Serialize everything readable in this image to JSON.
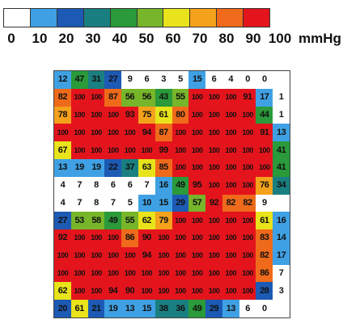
{
  "chart_data": {
    "type": "heatmap",
    "unit": "mmHg",
    "scale": {
      "ticks": [
        "0",
        "10",
        "20",
        "30",
        "40",
        "50",
        "60",
        "70",
        "80",
        "90",
        "100"
      ],
      "colors": [
        "#ffffff",
        "#3fa1e4",
        "#1c5ab4",
        "#1a7f80",
        "#2a9a3a",
        "#77b52a",
        "#e8e31a",
        "#f4a11c",
        "#ef6a1a",
        "#e4141c"
      ]
    },
    "values": [
      [
        12,
        47,
        31,
        27,
        9,
        6,
        3,
        5,
        15,
        6,
        4,
        0,
        0,
        0
      ],
      [
        82,
        100,
        100,
        87,
        56,
        56,
        43,
        55,
        100,
        100,
        100,
        91,
        17,
        1
      ],
      [
        78,
        100,
        100,
        100,
        93,
        75,
        61,
        80,
        100,
        100,
        100,
        100,
        44,
        1
      ],
      [
        100,
        100,
        100,
        100,
        100,
        94,
        87,
        100,
        100,
        100,
        100,
        100,
        91,
        13
      ],
      [
        67,
        100,
        100,
        100,
        100,
        100,
        99,
        100,
        100,
        100,
        100,
        100,
        100,
        41
      ],
      [
        13,
        19,
        19,
        22,
        37,
        63,
        85,
        100,
        100,
        100,
        100,
        100,
        100,
        41
      ],
      [
        4,
        7,
        8,
        6,
        6,
        7,
        16,
        49,
        95,
        100,
        100,
        100,
        76,
        34
      ],
      [
        4,
        7,
        8,
        7,
        5,
        10,
        15,
        29,
        57,
        92,
        82,
        82,
        9,
        0
      ],
      [
        27,
        53,
        58,
        49,
        55,
        62,
        79,
        100,
        100,
        100,
        100,
        100,
        61,
        16
      ],
      [
        92,
        100,
        100,
        100,
        86,
        90,
        100,
        100,
        100,
        100,
        100,
        100,
        83,
        14
      ],
      [
        100,
        100,
        100,
        100,
        100,
        94,
        100,
        100,
        100,
        100,
        100,
        100,
        82,
        17
      ],
      [
        100,
        100,
        100,
        100,
        100,
        100,
        100,
        100,
        100,
        100,
        100,
        100,
        86,
        7
      ],
      [
        62,
        100,
        100,
        94,
        90,
        100,
        100,
        100,
        100,
        100,
        100,
        100,
        28,
        3
      ],
      [
        20,
        61,
        21,
        19,
        13,
        15,
        38,
        36,
        49,
        29,
        13,
        6,
        0,
        0
      ]
    ],
    "hidden_cells": [
      [
        0,
        13
      ],
      [
        7,
        13
      ],
      [
        13,
        13
      ]
    ]
  }
}
